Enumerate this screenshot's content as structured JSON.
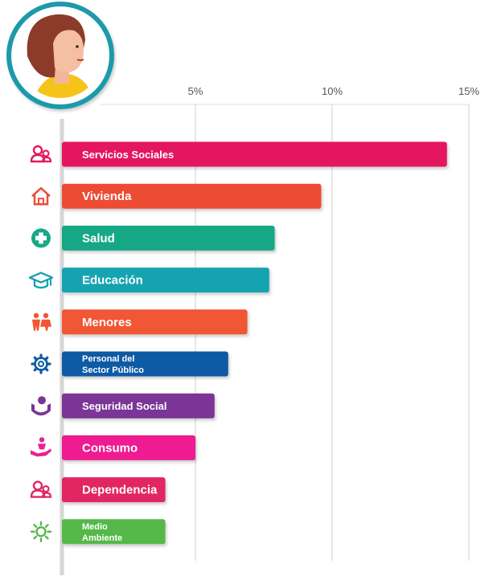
{
  "chart_data": {
    "type": "bar",
    "orientation": "horizontal",
    "x_ticks": [
      "5%",
      "10%",
      "15%"
    ],
    "x_tick_values": [
      5,
      10,
      15
    ],
    "xlim": [
      0,
      15
    ],
    "categories": [
      {
        "label": "Servicios Sociales",
        "value": 14.2,
        "color": "#e4185f",
        "icon": "people-icon"
      },
      {
        "label": "Vivienda",
        "value": 9.6,
        "color": "#ee4c36",
        "icon": "house-icon"
      },
      {
        "label": "Salud",
        "value": 7.9,
        "color": "#17a885",
        "icon": "health-cross-icon"
      },
      {
        "label": "Educación",
        "value": 7.7,
        "color": "#14a3b1",
        "icon": "graduation-cap-icon"
      },
      {
        "label": "Menores",
        "value": 6.9,
        "color": "#f15634",
        "icon": "children-icon"
      },
      {
        "label": "Personal del\nSector Público",
        "value": 6.2,
        "color": "#0f5aa5",
        "icon": "gear-icon"
      },
      {
        "label": "Seguridad Social",
        "value": 5.7,
        "color": "#7a3696",
        "icon": "hands-care-icon"
      },
      {
        "label": "Consumo",
        "value": 5.0,
        "color": "#ee1e90",
        "icon": "hand-gift-icon"
      },
      {
        "label": "Dependencia",
        "value": 3.9,
        "color": "#e22562",
        "icon": "people-icon"
      },
      {
        "label": "Medio\nAmbiente",
        "value": 3.9,
        "color": "#55b848",
        "icon": "sun-icon"
      }
    ],
    "grid": true
  },
  "avatar": {
    "icon": "woman-avatar-icon",
    "ring_color": "#1b9aab"
  }
}
